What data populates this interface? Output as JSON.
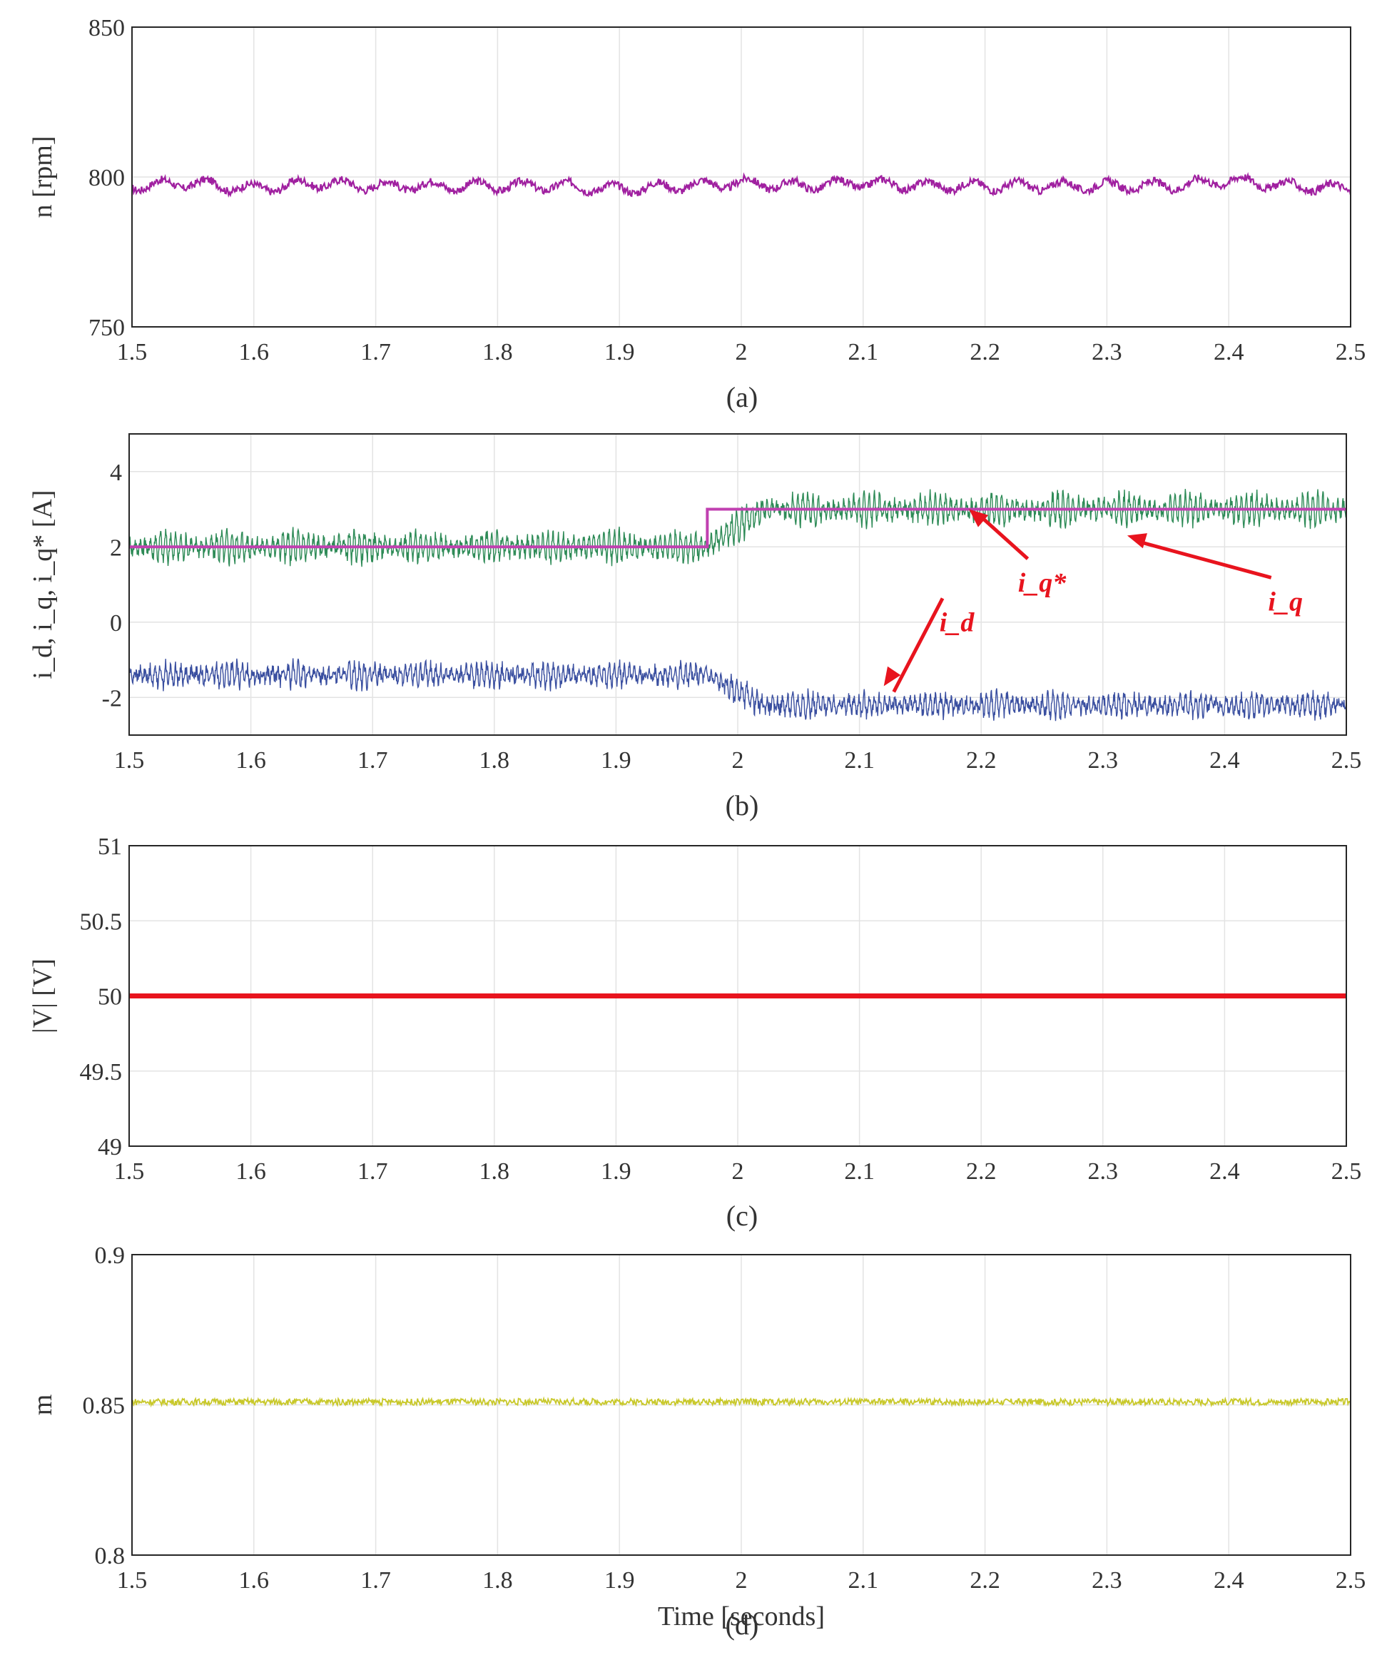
{
  "chart_data": [
    {
      "type": "line",
      "caption": "(a)",
      "ylabel": "n [rpm]",
      "xlabel": "",
      "xlim": [
        1.5,
        2.5
      ],
      "ylim": [
        750,
        850
      ],
      "xticks": [
        "1.5",
        "1.6",
        "1.7",
        "1.8",
        "1.9",
        "2",
        "2.1",
        "2.2",
        "2.3",
        "2.4",
        "2.5"
      ],
      "yticks": [
        "750",
        "800",
        "850"
      ],
      "grid": true,
      "series": [
        {
          "color": "#a020a0",
          "x": [
            1.5,
            1.55,
            1.6,
            1.65,
            1.7,
            1.75,
            1.8,
            1.85,
            1.9,
            1.95,
            2.0,
            2.05,
            2.1,
            2.15,
            2.2,
            2.25,
            2.3,
            2.35,
            2.4,
            2.45,
            2.5
          ],
          "y": [
            797,
            798,
            796,
            798,
            797,
            797,
            797,
            797,
            796,
            797,
            798,
            797,
            798,
            797,
            797,
            797,
            797,
            797,
            799,
            797,
            796
          ]
        }
      ]
    },
    {
      "type": "line",
      "caption": "(b)",
      "ylabel": "i_d, i_q, i_q* [A]",
      "xlabel": "",
      "xlim": [
        1.5,
        2.5
      ],
      "ylim": [
        -3,
        5
      ],
      "xticks": [
        "1.5",
        "1.6",
        "1.7",
        "1.8",
        "1.9",
        "2",
        "2.1",
        "2.2",
        "2.3",
        "2.4",
        "2.5"
      ],
      "yticks": [
        "-2",
        "0",
        "2",
        "4"
      ],
      "grid": true,
      "series": [
        {
          "color": "#2e8b57",
          "x": [
            1.5,
            1.975,
            2.02,
            2.5
          ],
          "y": [
            2,
            2,
            3,
            3
          ]
        },
        {
          "color": "#3a4fa0",
          "x": [
            1.5,
            1.975,
            2.02,
            2.5
          ],
          "y": [
            -1.4,
            -1.4,
            -2.2,
            -2.2
          ]
        },
        {
          "color": "#c040b0",
          "x": [
            1.5,
            1.975,
            1.975,
            2.5
          ],
          "y": [
            2,
            2,
            3,
            3
          ]
        }
      ],
      "annotations": [
        {
          "text": "i_q*",
          "x": 2.25,
          "y": 1.0
        },
        {
          "text": "i_q",
          "x": 2.45,
          "y": 0.5
        },
        {
          "text": "i_d",
          "x": 2.18,
          "y": -0.05
        }
      ]
    },
    {
      "type": "line",
      "caption": "(c)",
      "ylabel": "|V| [V]",
      "xlabel": "",
      "xlim": [
        1.5,
        2.5
      ],
      "ylim": [
        49,
        51
      ],
      "xticks": [
        "1.5",
        "1.6",
        "1.7",
        "1.8",
        "1.9",
        "2",
        "2.1",
        "2.2",
        "2.3",
        "2.4",
        "2.5"
      ],
      "yticks": [
        "49",
        "49.5",
        "50",
        "50.5",
        "51"
      ],
      "grid": true,
      "series": [
        {
          "color": "#e8141e",
          "x": [
            1.5,
            2.5
          ],
          "y": [
            50,
            50
          ]
        }
      ]
    },
    {
      "type": "line",
      "caption": "(d)",
      "ylabel": "m",
      "xlabel": "Time [seconds]",
      "xlim": [
        1.5,
        2.5
      ],
      "ylim": [
        0.8,
        0.9
      ],
      "xticks": [
        "1.5",
        "1.6",
        "1.7",
        "1.8",
        "1.9",
        "2",
        "2.1",
        "2.2",
        "2.3",
        "2.4",
        "2.5"
      ],
      "yticks": [
        "0.8",
        "0.85",
        "0.9"
      ],
      "grid": true,
      "series": [
        {
          "color": "#c8c82a",
          "x": [
            1.5,
            2.5
          ],
          "y": [
            0.851,
            0.851
          ]
        }
      ]
    }
  ]
}
